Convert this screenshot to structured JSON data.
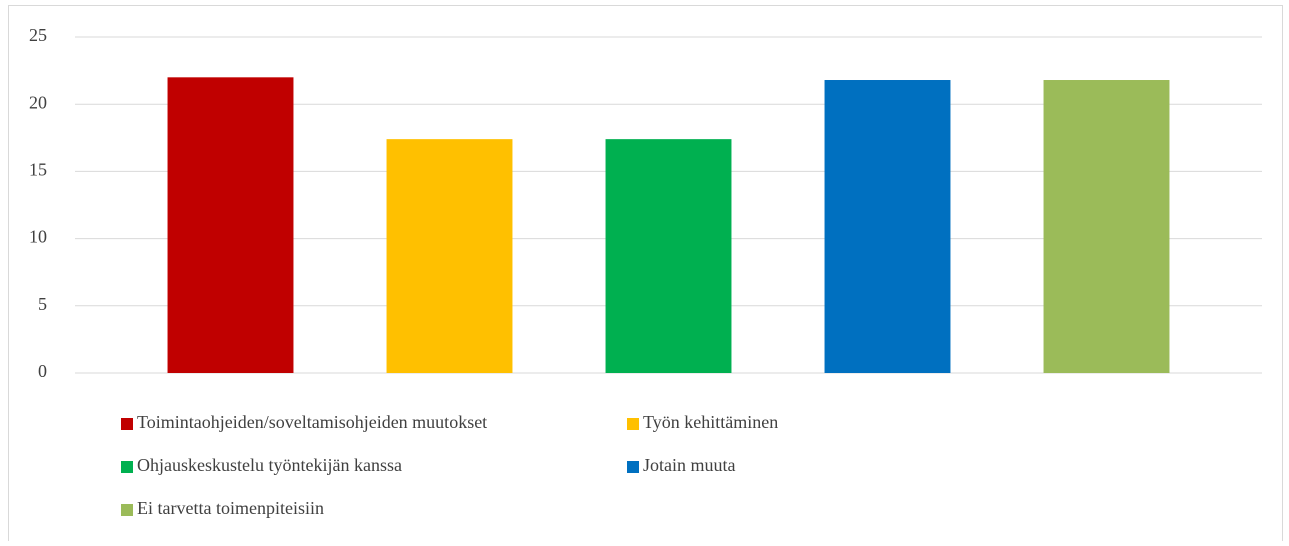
{
  "chart_data": {
    "type": "bar",
    "categories": [
      null
    ],
    "series": [
      {
        "name": "Toimintaohjeiden/soveltamisohjeiden muutokset",
        "color": "#c00000",
        "values": [
          22
        ]
      },
      {
        "name": "Työn kehittäminen",
        "color": "#ffc000",
        "values": [
          17.4
        ]
      },
      {
        "name": "Ohjauskeskustelu työntekijän kanssa",
        "color": "#00b050",
        "values": [
          17.4
        ]
      },
      {
        "name": "Jotain muuta",
        "color": "#0070c0",
        "values": [
          21.8
        ]
      },
      {
        "name": "Ei tarvetta toimenpiteisiin",
        "color": "#9bbb59",
        "values": [
          21.8
        ]
      }
    ],
    "ylim": [
      0,
      25
    ],
    "yticks": [
      0,
      5,
      10,
      15,
      20,
      25
    ],
    "grid": true,
    "legend": "bottom"
  }
}
